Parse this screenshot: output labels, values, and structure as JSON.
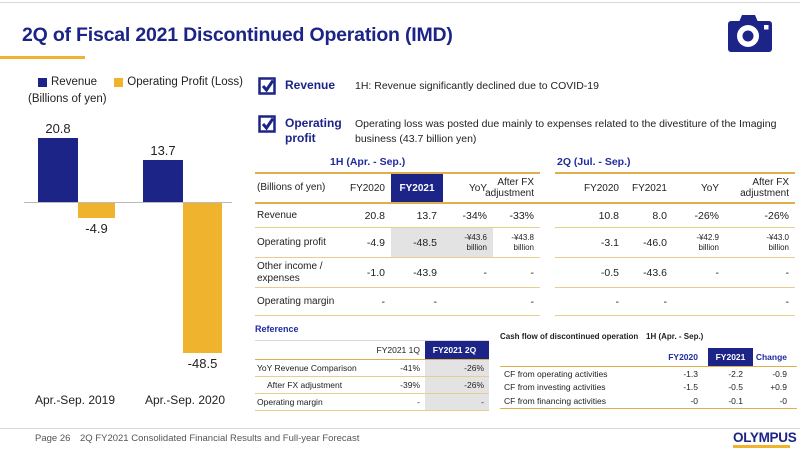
{
  "title": "2Q of Fiscal 2021 Discontinued Operation (IMD)",
  "colors": {
    "navy": "#1c2487",
    "gold": "#f0b32e",
    "table_line_gold": "#e8cd8f",
    "gray_highlight": "#e3e3e3"
  },
  "chart_data": {
    "type": "bar",
    "title": "",
    "xlabel": "",
    "ylabel": "(Billions of yen)",
    "unit_label": "(Billions of yen)",
    "categories": [
      "Apr.-Sep. 2019",
      "Apr.-Sep. 2020"
    ],
    "series": [
      {
        "name": "Revenue",
        "color": "#1c2487",
        "values": [
          20.8,
          13.7
        ],
        "display": [
          "20.8",
          "13.7"
        ]
      },
      {
        "name": "Operating Profit (Loss)",
        "color": "#f0b32e",
        "values": [
          -4.9,
          -48.5
        ],
        "display": [
          "-4.9",
          "-48.5"
        ]
      }
    ],
    "legend_position": "top",
    "grid": false,
    "baseline": 0
  },
  "highlights": [
    {
      "label": "Revenue",
      "text": "1H: Revenue significantly declined due to COVID-19"
    },
    {
      "label": "Operating profit",
      "text": "Operating loss was posted due mainly to expenses related to the divestiture of the Imaging business (43.7 billion yen)"
    }
  ],
  "main_table": {
    "unit_label": "(Billions of yen)",
    "group_headers": [
      "1H (Apr. - Sep.)",
      "2Q (Jul. - Sep.)"
    ],
    "col_headers": [
      "FY2020",
      "FY2021",
      "YoY",
      "After FX adjustment"
    ],
    "rows": [
      {
        "label": "Revenue",
        "h1": [
          "20.8",
          "13.7",
          "-34%",
          "-33%"
        ],
        "q2": [
          "10.8",
          "8.0",
          "-26%",
          "-26%"
        ]
      },
      {
        "label": "Operating profit",
        "h1": [
          "-4.9",
          "-48.5",
          "-¥43.6 billion",
          "-¥43.8 billion"
        ],
        "q2": [
          "-3.1",
          "-46.0",
          "-¥42.9 billion",
          "-¥43.0 billion"
        ]
      },
      {
        "label": "Other income / expenses",
        "h1": [
          "-1.0",
          "-43.9",
          "-",
          "-"
        ],
        "q2": [
          "-0.5",
          "-43.6",
          "-",
          "-"
        ]
      },
      {
        "label": "Operating margin",
        "h1": [
          "-",
          "-",
          "",
          "-"
        ],
        "q2": [
          "-",
          "-",
          "",
          "-"
        ]
      }
    ]
  },
  "reference_table": {
    "title": "Reference",
    "col_headers": [
      "FY2021 1Q",
      "FY2021 2Q"
    ],
    "rows": [
      {
        "label": "YoY Revenue Comparison",
        "values": [
          "-41%",
          "-26%"
        ]
      },
      {
        "label": "After FX adjustment",
        "values": [
          "-39%",
          "-26%"
        ]
      },
      {
        "label": "Operating margin",
        "values": [
          "-",
          "-"
        ]
      }
    ]
  },
  "cashflow_table": {
    "title": "Cash flow of discontinued operation",
    "period": "1H (Apr. - Sep.)",
    "col_headers": [
      "FY2020",
      "FY2021",
      "Change"
    ],
    "rows": [
      {
        "label": "CF from operating activities",
        "values": [
          "-1.3",
          "-2.2",
          "-0.9"
        ]
      },
      {
        "label": "CF from investing activities",
        "values": [
          "-1.5",
          "-0.5",
          "+0.9"
        ]
      },
      {
        "label": "CF from financing activities",
        "values": [
          "-0",
          "-0.1",
          "-0"
        ]
      }
    ]
  },
  "footer": {
    "page": "Page 26",
    "doc_title": "2Q FY2021 Consolidated Financial Results and Full-year Forecast",
    "logo": "OLYMPUS"
  }
}
